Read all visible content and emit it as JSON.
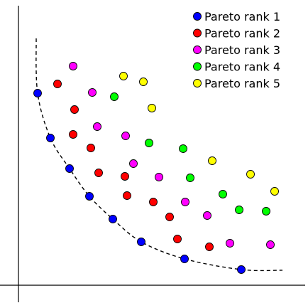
{
  "chart_data": {
    "type": "scatter",
    "title": "",
    "xlabel": "",
    "ylabel": "",
    "xlim": [
      0,
      40
    ],
    "ylim": [
      0,
      39
    ],
    "grid": false,
    "ticks": false,
    "legend_position": "top-right",
    "series": [
      {
        "name": "Pareto rank 1",
        "color": "#0000ff",
        "points": [
          [
            2.7,
            27.0
          ],
          [
            4.5,
            20.7
          ],
          [
            7.2,
            16.4
          ],
          [
            10.0,
            12.5
          ],
          [
            13.3,
            9.3
          ],
          [
            17.3,
            6.1
          ],
          [
            23.4,
            3.7
          ],
          [
            31.4,
            2.2
          ]
        ]
      },
      {
        "name": "Pareto rank 2",
        "color": "#ff0000",
        "points": [
          [
            5.5,
            28.3
          ],
          [
            7.9,
            24.7
          ],
          [
            7.7,
            21.2
          ],
          [
            10.2,
            19.3
          ],
          [
            11.3,
            15.8
          ],
          [
            15.0,
            15.3
          ],
          [
            15.3,
            12.6
          ],
          [
            19.0,
            11.7
          ],
          [
            21.3,
            9.6
          ],
          [
            22.4,
            6.5
          ],
          [
            26.9,
            5.4
          ]
        ]
      },
      {
        "name": "Pareto rank 3",
        "color": "#ff00ff",
        "points": [
          [
            7.7,
            30.8
          ],
          [
            10.4,
            27.1
          ],
          [
            11.1,
            22.3
          ],
          [
            15.1,
            21.0
          ],
          [
            16.2,
            17.1
          ],
          [
            19.8,
            15.2
          ],
          [
            23.5,
            11.7
          ],
          [
            26.6,
            9.8
          ],
          [
            29.8,
            5.9
          ],
          [
            35.5,
            5.7
          ]
        ]
      },
      {
        "name": "Pareto rank 4",
        "color": "#00ff00",
        "points": [
          [
            13.5,
            26.5
          ],
          [
            18.4,
            20.0
          ],
          [
            23.2,
            19.2
          ],
          [
            24.2,
            15.1
          ],
          [
            28.8,
            12.8
          ],
          [
            31.1,
            10.6
          ],
          [
            34.9,
            10.4
          ]
        ]
      },
      {
        "name": "Pareto rank 5",
        "color": "#ffff00",
        "points": [
          [
            14.8,
            29.4
          ],
          [
            17.6,
            28.6
          ],
          [
            18.8,
            24.9
          ],
          [
            27.3,
            17.5
          ],
          [
            32.7,
            15.6
          ],
          [
            36.1,
            13.2
          ]
        ]
      }
    ]
  }
}
